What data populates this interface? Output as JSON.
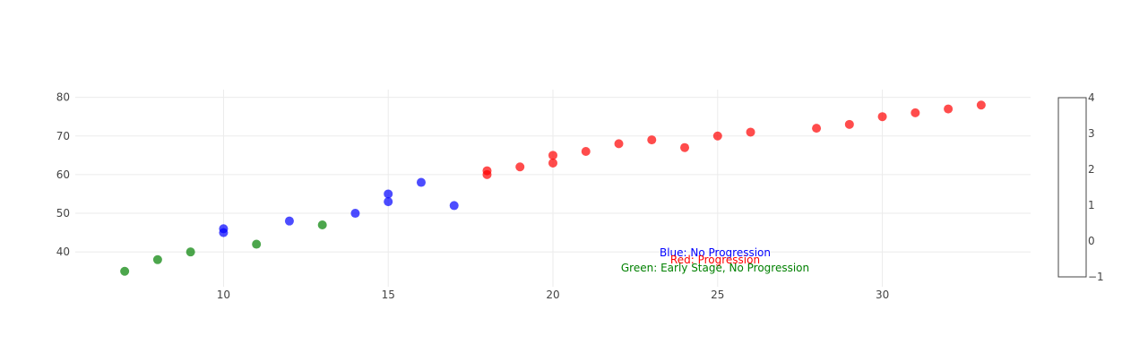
{
  "chart_data": {
    "type": "scatter",
    "xlim": [
      5.5,
      34.5
    ],
    "ylim": [
      31,
      82
    ],
    "x_ticks": [
      10,
      15,
      20,
      25,
      30
    ],
    "y_ticks": [
      40,
      50,
      60,
      70,
      80
    ],
    "grid": true,
    "series": [
      {
        "color": "#0000ff",
        "points": [
          [
            10,
            46
          ],
          [
            10,
            45
          ],
          [
            12,
            48
          ],
          [
            14,
            50
          ],
          [
            15,
            55
          ],
          [
            15,
            53
          ],
          [
            16,
            58
          ],
          [
            17,
            52
          ]
        ]
      },
      {
        "color": "#ff0000",
        "points": [
          [
            18,
            61
          ],
          [
            18,
            60
          ],
          [
            19,
            62
          ],
          [
            20,
            65
          ],
          [
            20,
            63
          ],
          [
            21,
            66
          ],
          [
            22,
            68
          ],
          [
            23,
            69
          ],
          [
            24,
            67
          ],
          [
            25,
            70
          ],
          [
            26,
            71
          ],
          [
            28,
            72
          ],
          [
            29,
            73
          ],
          [
            30,
            75
          ],
          [
            31,
            76
          ],
          [
            32,
            77
          ],
          [
            33,
            78
          ]
        ]
      },
      {
        "color": "#008000",
        "points": [
          [
            7,
            35
          ],
          [
            8,
            38
          ],
          [
            9,
            40
          ],
          [
            11,
            42
          ],
          [
            13,
            47
          ]
        ]
      }
    ],
    "annotations": [
      {
        "text": "Blue: No Progression",
        "color": "#0000ff"
      },
      {
        "text": "Red: Progression",
        "color": "#ff0000"
      },
      {
        "text": "Green: Early Stage, No Progression",
        "color": "#008000"
      }
    ],
    "colorbar": {
      "ticks": [
        4,
        3,
        2,
        1,
        0,
        -1
      ]
    }
  }
}
